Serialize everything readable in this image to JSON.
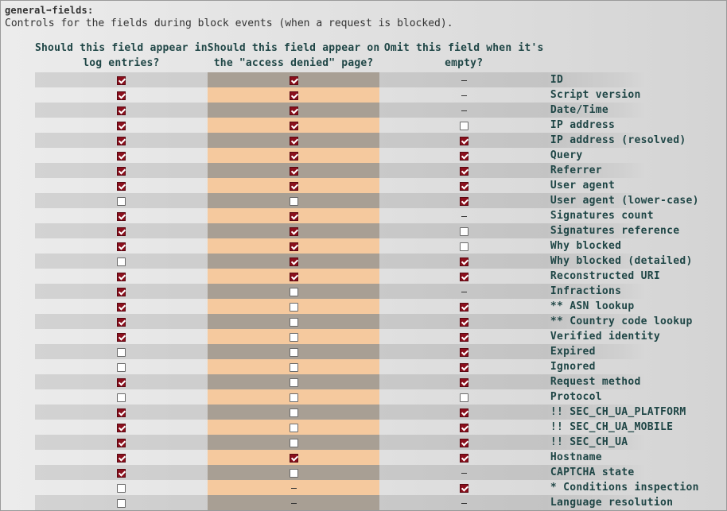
{
  "setting": {
    "key": "general➡fields:",
    "description": "Controls for the fields during block events (when a request is blocked)."
  },
  "columns": [
    "Should this field appear in\nlog entries?",
    "Should this field appear on\nthe \"access denied\" page?",
    "Omit this field when it's\nempty?"
  ],
  "rows": [
    {
      "label": "ID",
      "log": "checked",
      "page": "checked",
      "omit": "none"
    },
    {
      "label": "Script version",
      "log": "checked",
      "page": "checked",
      "omit": "none"
    },
    {
      "label": "Date/Time",
      "log": "checked",
      "page": "checked",
      "omit": "none"
    },
    {
      "label": "IP address",
      "log": "checked",
      "page": "checked",
      "omit": "unchecked"
    },
    {
      "label": "IP address (resolved)",
      "log": "checked",
      "page": "checked",
      "omit": "checked"
    },
    {
      "label": "Query",
      "log": "checked",
      "page": "checked",
      "omit": "checked"
    },
    {
      "label": "Referrer",
      "log": "checked",
      "page": "checked",
      "omit": "checked"
    },
    {
      "label": "User agent",
      "log": "checked",
      "page": "checked",
      "omit": "checked"
    },
    {
      "label": "User agent (lower-case)",
      "log": "unchecked",
      "page": "unchecked",
      "omit": "checked"
    },
    {
      "label": "Signatures count",
      "log": "checked",
      "page": "checked",
      "omit": "none"
    },
    {
      "label": "Signatures reference",
      "log": "checked",
      "page": "checked",
      "omit": "unchecked"
    },
    {
      "label": "Why blocked",
      "log": "checked",
      "page": "checked",
      "omit": "unchecked"
    },
    {
      "label": "Why blocked (detailed)",
      "log": "unchecked",
      "page": "checked",
      "omit": "checked"
    },
    {
      "label": "Reconstructed URI",
      "log": "checked",
      "page": "checked",
      "omit": "checked"
    },
    {
      "label": "Infractions",
      "log": "checked",
      "page": "unchecked",
      "omit": "none"
    },
    {
      "label": "** ASN lookup",
      "log": "checked",
      "page": "unchecked",
      "omit": "checked"
    },
    {
      "label": "** Country code lookup",
      "log": "checked",
      "page": "unchecked",
      "omit": "checked"
    },
    {
      "label": "Verified identity",
      "log": "checked",
      "page": "unchecked",
      "omit": "checked"
    },
    {
      "label": "Expired",
      "log": "unchecked",
      "page": "unchecked",
      "omit": "checked"
    },
    {
      "label": "Ignored",
      "log": "unchecked",
      "page": "unchecked",
      "omit": "checked"
    },
    {
      "label": "Request method",
      "log": "checked",
      "page": "unchecked",
      "omit": "checked"
    },
    {
      "label": "Protocol",
      "log": "unchecked",
      "page": "unchecked",
      "omit": "unchecked"
    },
    {
      "label": "!! SEC_CH_UA_PLATFORM",
      "log": "checked",
      "page": "unchecked",
      "omit": "checked"
    },
    {
      "label": "!! SEC_CH_UA_MOBILE",
      "log": "checked",
      "page": "unchecked",
      "omit": "checked"
    },
    {
      "label": "!! SEC_CH_UA",
      "log": "checked",
      "page": "unchecked",
      "omit": "checked"
    },
    {
      "label": "Hostname",
      "log": "checked",
      "page": "checked",
      "omit": "checked"
    },
    {
      "label": "CAPTCHA state",
      "log": "checked",
      "page": "unchecked",
      "omit": "none"
    },
    {
      "label": "* Conditions inspection",
      "log": "unchecked",
      "page": "none",
      "omit": "checked"
    },
    {
      "label": "Language resolution",
      "log": "unchecked",
      "page": "none",
      "omit": "none"
    }
  ]
}
